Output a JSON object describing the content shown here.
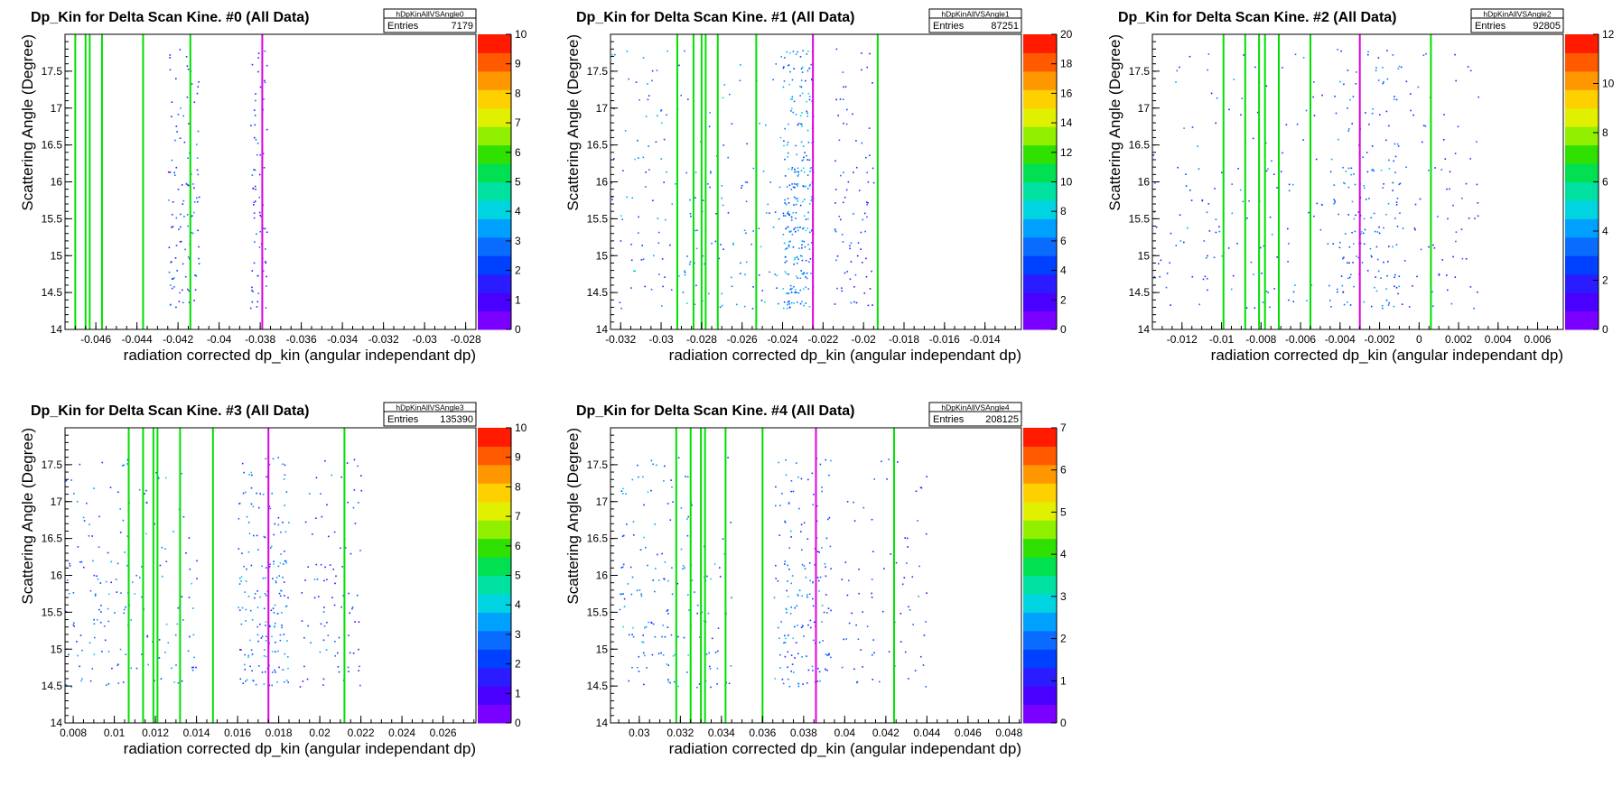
{
  "chart_data": [
    {
      "type": "heatmap",
      "title": "Dp_Kin for Delta Scan Kine. #0 (All Data)",
      "xlabel": "radiation corrected dp_kin (angular independant dp)",
      "ylabel": "Scattering Angle (Degree)",
      "stats": {
        "name": "hDpKinAllVSAngle0",
        "entries_label": "Entries",
        "entries": "7179"
      },
      "xlim": [
        -0.0475,
        -0.0275
      ],
      "ylim": [
        14,
        18
      ],
      "xticks": [
        -0.046,
        -0.044,
        -0.042,
        -0.04,
        -0.038,
        -0.036,
        -0.034,
        -0.032,
        -0.03,
        -0.028
      ],
      "xtick_labels": [
        "-0.046",
        "-0.044",
        "-0.042",
        "-0.04",
        "-0.038",
        "-0.036",
        "-0.034",
        "-0.032",
        "-0.03",
        "-0.028"
      ],
      "yticks": [
        14,
        14.5,
        15,
        15.5,
        16,
        16.5,
        17,
        17.5
      ],
      "ytick_labels": [
        "14",
        "14.5",
        "15",
        "15.5",
        "16",
        "16.5",
        "17",
        "17.5"
      ],
      "zmax": 10,
      "zticks": [
        0,
        1,
        2,
        3,
        4,
        5,
        6,
        7,
        8,
        9,
        10
      ],
      "ztick_labels": [
        "0",
        "1",
        "2",
        "3",
        "4",
        "5",
        "6",
        "7",
        "8",
        "9",
        "10"
      ],
      "green_lines": [
        -0.047,
        -0.0465,
        -0.0463,
        -0.0457,
        -0.0437,
        -0.0414
      ],
      "magenta_line": -0.0379,
      "clusters": [
        {
          "x0": -0.0425,
          "x1": -0.041,
          "density": 0.45
        },
        {
          "x0": -0.0385,
          "x1": -0.0377,
          "density": 0.3
        }
      ],
      "y_range": [
        14.3,
        17.9
      ]
    },
    {
      "type": "heatmap",
      "title": "Dp_Kin for Delta Scan Kine. #1 (All Data)",
      "xlabel": "radiation corrected dp_kin (angular independant dp)",
      "ylabel": "Scattering Angle (Degree)",
      "stats": {
        "name": "hDpKinAllVSAngle1",
        "entries_label": "Entries",
        "entries": "87251"
      },
      "xlim": [
        -0.0325,
        -0.0122
      ],
      "ylim": [
        14,
        18
      ],
      "xticks": [
        -0.032,
        -0.03,
        -0.028,
        -0.026,
        -0.024,
        -0.022,
        -0.02,
        -0.018,
        -0.016,
        -0.014
      ],
      "xtick_labels": [
        "-0.032",
        "-0.03",
        "-0.028",
        "-0.026",
        "-0.024",
        "-0.022",
        "-0.02",
        "-0.018",
        "-0.016",
        "-0.014"
      ],
      "yticks": [
        14,
        14.5,
        15,
        15.5,
        16,
        16.5,
        17,
        17.5
      ],
      "ytick_labels": [
        "14",
        "14.5",
        "15",
        "15.5",
        "16",
        "16.5",
        "17",
        "17.5"
      ],
      "zmax": 20,
      "zticks": [
        0,
        2,
        4,
        6,
        8,
        10,
        12,
        14,
        16,
        18,
        20
      ],
      "ztick_labels": [
        "0",
        "2",
        "4",
        "6",
        "8",
        "10",
        "12",
        "14",
        "16",
        "18",
        "20"
      ],
      "green_lines": [
        -0.0292,
        -0.0284,
        -0.028,
        -0.0278,
        -0.0272,
        -0.0253,
        -0.0193
      ],
      "magenta_line": -0.0225,
      "clusters": [
        {
          "x0": -0.0325,
          "x1": -0.0232,
          "density": 0.8
        },
        {
          "x0": -0.024,
          "x1": -0.0225,
          "density": 1.0
        },
        {
          "x0": -0.0215,
          "x1": -0.0195,
          "density": 0.35
        }
      ],
      "y_range": [
        14.3,
        17.9
      ]
    },
    {
      "type": "heatmap",
      "title": "Dp_Kin for Delta Scan Kine. #2 (All Data)",
      "xlabel": "radiation corrected dp_kin (angular independant dp)",
      "ylabel": "Scattering Angle (Degree)",
      "stats": {
        "name": "hDpKinAllVSAngle2",
        "entries_label": "Entries",
        "entries": "92805"
      },
      "xlim": [
        -0.0135,
        0.0073
      ],
      "ylim": [
        14,
        18
      ],
      "xticks": [
        -0.012,
        -0.01,
        -0.008,
        -0.006,
        -0.004,
        -0.002,
        0,
        0.002,
        0.004,
        0.006
      ],
      "xtick_labels": [
        "-0.012",
        "-0.01",
        "-0.008",
        "-0.006",
        "-0.004",
        "-0.002",
        "0",
        "0.002",
        "0.004",
        "0.006"
      ],
      "yticks": [
        14,
        14.5,
        15,
        15.5,
        16,
        16.5,
        17,
        17.5
      ],
      "ytick_labels": [
        "14",
        "14.5",
        "15",
        "15.5",
        "16",
        "16.5",
        "17",
        "17.5"
      ],
      "zmax": 12,
      "zticks": [
        0,
        2,
        4,
        6,
        8,
        10,
        12
      ],
      "ztick_labels": [
        "0",
        "2",
        "4",
        "6",
        "8",
        "10",
        "12"
      ],
      "green_lines": [
        -0.0099,
        -0.0088,
        -0.0081,
        -0.0078,
        -0.0071,
        -0.0055,
        0.0006
      ],
      "magenta_line": -0.003,
      "clusters": [
        {
          "x0": -0.0135,
          "x1": -0.0045,
          "density": 0.55
        },
        {
          "x0": -0.0045,
          "x1": -0.001,
          "density": 0.7
        },
        {
          "x0": -0.001,
          "x1": 0.003,
          "density": 0.3
        }
      ],
      "y_range": [
        14.3,
        17.9
      ]
    },
    {
      "type": "heatmap",
      "title": "Dp_Kin for Delta Scan Kine. #3 (All Data)",
      "xlabel": "radiation corrected dp_kin (angular independant dp)",
      "ylabel": "Scattering Angle (Degree)",
      "stats": {
        "name": "hDpKinAllVSAngle3",
        "entries_label": "Entries",
        "entries": "135390"
      },
      "xlim": [
        0.0076,
        0.0276
      ],
      "ylim": [
        14,
        18
      ],
      "xticks": [
        0.008,
        0.01,
        0.012,
        0.014,
        0.016,
        0.018,
        0.02,
        0.022,
        0.024,
        0.026
      ],
      "xtick_labels": [
        "0.008",
        "0.01",
        "0.012",
        "0.014",
        "0.016",
        "0.018",
        "0.02",
        "0.022",
        "0.024",
        "0.026"
      ],
      "yticks": [
        14,
        14.5,
        15,
        15.5,
        16,
        16.5,
        17,
        17.5
      ],
      "ytick_labels": [
        "14",
        "14.5",
        "15",
        "15.5",
        "16",
        "16.5",
        "17",
        "17.5"
      ],
      "zmax": 10,
      "zticks": [
        0,
        1,
        2,
        3,
        4,
        5,
        6,
        7,
        8,
        9,
        10
      ],
      "ztick_labels": [
        "0",
        "1",
        "2",
        "3",
        "4",
        "5",
        "6",
        "7",
        "8",
        "9",
        "10"
      ],
      "green_lines": [
        0.0107,
        0.0114,
        0.0119,
        0.0121,
        0.0132,
        0.0148,
        0.0212
      ],
      "magenta_line": 0.0175,
      "clusters": [
        {
          "x0": 0.0076,
          "x1": 0.014,
          "density": 0.75
        },
        {
          "x0": 0.016,
          "x1": 0.0185,
          "density": 0.8
        },
        {
          "x0": 0.019,
          "x1": 0.022,
          "density": 0.4
        }
      ],
      "y_range": [
        14.5,
        17.6
      ]
    },
    {
      "type": "heatmap",
      "title": "Dp_Kin for Delta Scan Kine. #4 (All Data)",
      "xlabel": "radiation corrected dp_kin (angular independant dp)",
      "ylabel": "Scattering Angle (Degree)",
      "stats": {
        "name": "hDpKinAllVSAngle4",
        "entries_label": "Entries",
        "entries": "208125"
      },
      "xlim": [
        0.0286,
        0.0486
      ],
      "ylim": [
        14,
        18
      ],
      "xticks": [
        0.03,
        0.032,
        0.034,
        0.036,
        0.038,
        0.04,
        0.042,
        0.044,
        0.046,
        0.048
      ],
      "xtick_labels": [
        "0.03",
        "0.032",
        "0.034",
        "0.036",
        "0.038",
        "0.04",
        "0.042",
        "0.044",
        "0.046",
        "0.048"
      ],
      "yticks": [
        14,
        14.5,
        15,
        15.5,
        16,
        16.5,
        17,
        17.5
      ],
      "ytick_labels": [
        "14",
        "14.5",
        "15",
        "15.5",
        "16",
        "16.5",
        "17",
        "17.5"
      ],
      "zmax": 7,
      "zticks": [
        0,
        1,
        2,
        3,
        4,
        5,
        6,
        7
      ],
      "ztick_labels": [
        "0",
        "1",
        "2",
        "3",
        "4",
        "5",
        "6",
        "7"
      ],
      "green_lines": [
        0.0318,
        0.0325,
        0.033,
        0.0332,
        0.0342,
        0.036,
        0.0424
      ],
      "magenta_line": 0.0386,
      "clusters": [
        {
          "x0": 0.029,
          "x1": 0.0345,
          "density": 0.75
        },
        {
          "x0": 0.0365,
          "x1": 0.0393,
          "density": 0.7
        },
        {
          "x0": 0.0398,
          "x1": 0.044,
          "density": 0.35
        }
      ],
      "y_range": [
        14.5,
        17.6
      ]
    }
  ]
}
